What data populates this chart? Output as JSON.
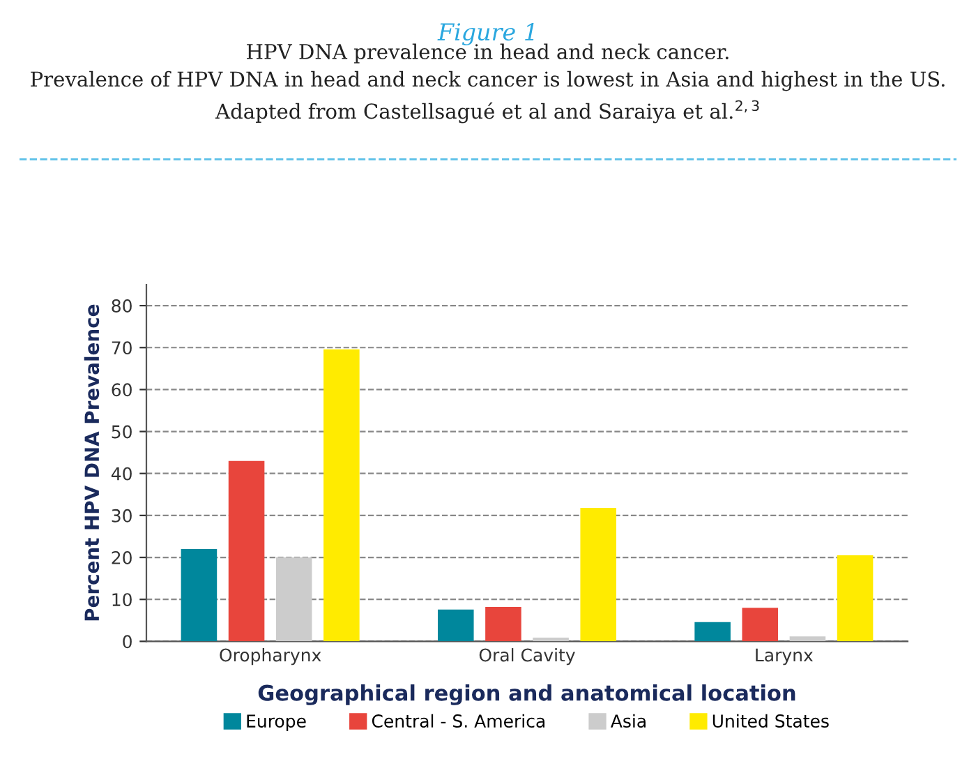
{
  "chart_data": {
    "type": "bar",
    "title": "Figure 1",
    "subtitle": "HPV DNA prevalence in head and neck cancer.\nPrevalence of HPV DNA in head and neck cancer is lowest in Asia and highest in the US.\nAdapted from Castellsagué et al and Saraiya et al.$^{2,3}$",
    "xlabel": "Geographical region and anatomical location",
    "ylabel": "Percent HPV DNA Prevalence",
    "categories": [
      "Oropharynx",
      "Oral Cavity",
      "Larynx"
    ],
    "series": [
      {
        "name": "Europe",
        "color": "#00879c",
        "values": [
          22,
          7.6,
          4.6
        ]
      },
      {
        "name": "Central - S. America",
        "color": "#e8453c",
        "values": [
          43,
          8.2,
          8.0
        ]
      },
      {
        "name": "Asia",
        "color": "#cccccc",
        "values": [
          20,
          0.9,
          1.2
        ]
      },
      {
        "name": "United States",
        "color": "#ffeb00",
        "values": [
          69.6,
          31.8,
          20.5
        ]
      }
    ],
    "ylim": [
      0,
      85
    ],
    "yticks": [
      0,
      10,
      20,
      30,
      40,
      50,
      60,
      70,
      80
    ],
    "grid": "y",
    "legend": "bottom"
  }
}
